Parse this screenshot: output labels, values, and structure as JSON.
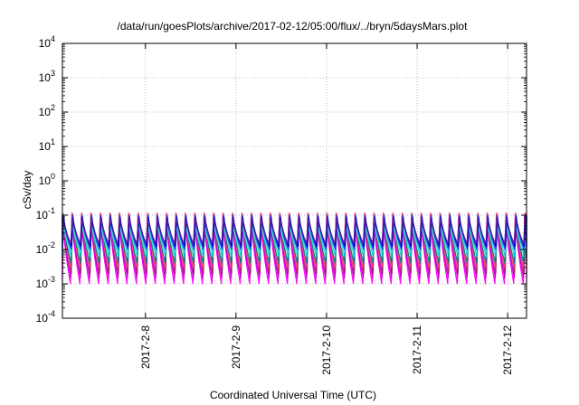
{
  "chart_data": {
    "type": "line",
    "title": "/data/run/goesPlots/archive/2017-02-12/05:00/flux/../bryn/5daysMars.plot",
    "xlabel": "Coordinated Universal Time (UTC)",
    "ylabel": "cSv/day",
    "yscale": "log",
    "ylim": [
      0.0001,
      10000
    ],
    "yticks": [
      {
        "base": "10",
        "exp": "-4"
      },
      {
        "base": "10",
        "exp": "-3"
      },
      {
        "base": "10",
        "exp": "-2"
      },
      {
        "base": "10",
        "exp": "-1"
      },
      {
        "base": "10",
        "exp": "0"
      },
      {
        "base": "10",
        "exp": "1"
      },
      {
        "base": "10",
        "exp": "2"
      },
      {
        "base": "10",
        "exp": "3"
      },
      {
        "base": "10",
        "exp": "4"
      }
    ],
    "xlim": [
      "2017-02-07 02:00",
      "2017-02-12 05:00"
    ],
    "xticks": [
      "2017-2-8",
      "2017-2-9",
      "2017-2-10",
      "2017-2-11",
      "2017-2-12"
    ],
    "grid": true,
    "period_hours": 2.5,
    "series": [
      {
        "color": "#ff00ff",
        "peak": 0.1,
        "trough": 0.001
      },
      {
        "color": "#c000c0",
        "peak": 0.08,
        "trough": 0.0015
      },
      {
        "color": "#a0206a",
        "peak": 0.11,
        "trough": 0.002
      },
      {
        "color": "#ff4080",
        "peak": 0.12,
        "trough": 0.003
      },
      {
        "color": "#008080",
        "peak": 0.09,
        "trough": 0.004
      },
      {
        "color": "#00c0c0",
        "peak": 0.1,
        "trough": 0.006
      },
      {
        "color": "#40e0d0",
        "peak": 0.07,
        "trough": 0.008
      },
      {
        "color": "#2040ff",
        "peak": 0.1,
        "trough": 0.01
      },
      {
        "color": "#0000c0",
        "peak": 0.09,
        "trough": 0.012
      },
      {
        "color": "#6020a0",
        "peak": 0.085,
        "trough": 0.015
      }
    ]
  }
}
